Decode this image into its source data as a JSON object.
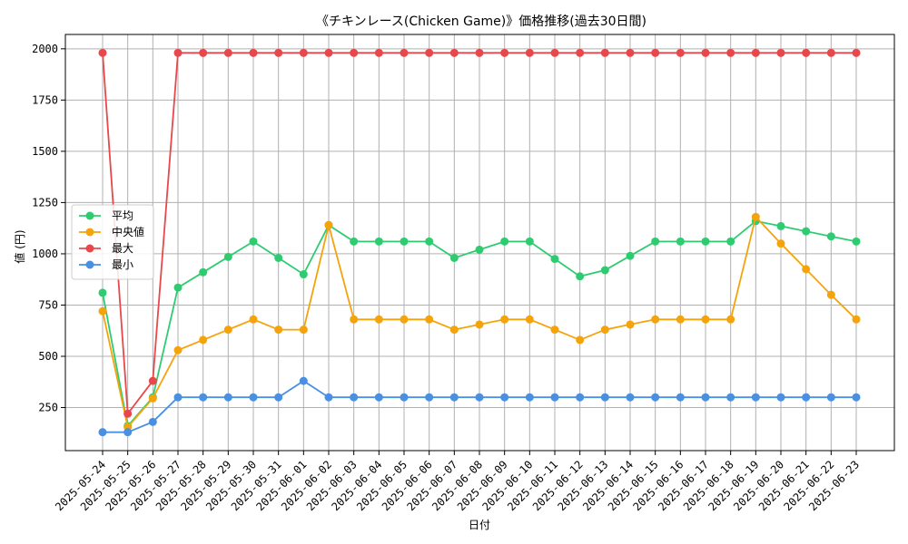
{
  "chart_data": {
    "type": "line",
    "title": "《チキンレース(Chicken Game)》価格推移(過去30日間)",
    "xlabel": "日付",
    "ylabel": "値 (円)",
    "ylim": [
      40,
      2070
    ],
    "yticks": [
      250,
      500,
      750,
      1000,
      1250,
      1500,
      1750,
      2000
    ],
    "grid": true,
    "legend_position": "center-left",
    "categories": [
      "2025-05-24",
      "2025-05-25",
      "2025-05-26",
      "2025-05-27",
      "2025-05-28",
      "2025-05-29",
      "2025-05-30",
      "2025-05-31",
      "2025-06-01",
      "2025-06-02",
      "2025-06-03",
      "2025-06-04",
      "2025-06-05",
      "2025-06-06",
      "2025-06-07",
      "2025-06-08",
      "2025-06-09",
      "2025-06-10",
      "2025-06-11",
      "2025-06-12",
      "2025-06-13",
      "2025-06-14",
      "2025-06-15",
      "2025-06-16",
      "2025-06-17",
      "2025-06-18",
      "2025-06-19",
      "2025-06-20",
      "2025-06-21",
      "2025-06-22",
      "2025-06-23"
    ],
    "series": [
      {
        "name": "平均",
        "color": "#2ecc71",
        "values": [
          810,
          160,
          300,
          835,
          910,
          985,
          1060,
          980,
          900,
          1140,
          1060,
          1060,
          1060,
          1060,
          980,
          1020,
          1060,
          1060,
          975,
          890,
          920,
          990,
          1060,
          1060,
          1060,
          1060,
          1160,
          1135,
          1110,
          1085,
          1060
        ]
      },
      {
        "name": "中央値",
        "color": "#f5a30a",
        "values": [
          720,
          155,
          295,
          530,
          580,
          630,
          680,
          630,
          630,
          1140,
          680,
          680,
          680,
          680,
          630,
          655,
          680,
          680,
          630,
          580,
          630,
          655,
          680,
          680,
          680,
          680,
          1180,
          1050,
          925,
          800,
          680
        ]
      },
      {
        "name": "最大",
        "color": "#e8474b",
        "values": [
          1980,
          220,
          380,
          1980,
          1980,
          1980,
          1980,
          1980,
          1980,
          1980,
          1980,
          1980,
          1980,
          1980,
          1980,
          1980,
          1980,
          1980,
          1980,
          1980,
          1980,
          1980,
          1980,
          1980,
          1980,
          1980,
          1980,
          1980,
          1980,
          1980,
          1980
        ]
      },
      {
        "name": "最小",
        "color": "#4a90e2",
        "values": [
          130,
          130,
          180,
          300,
          300,
          300,
          300,
          300,
          380,
          300,
          300,
          300,
          300,
          300,
          300,
          300,
          300,
          300,
          300,
          300,
          300,
          300,
          300,
          300,
          300,
          300,
          300,
          300,
          300,
          300,
          300
        ]
      }
    ]
  }
}
